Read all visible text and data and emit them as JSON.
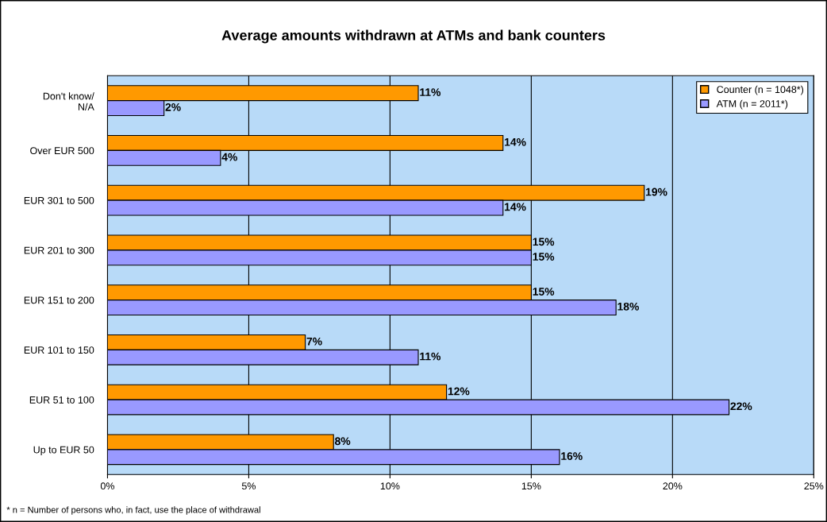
{
  "chart_data": {
    "type": "bar",
    "orientation": "horizontal",
    "title": "Average amounts withdrawn at ATMs and bank counters",
    "categories": [
      "Don't know/\nN/A",
      "Over EUR 500",
      "EUR 301 to 500",
      "EUR 201 to 300",
      "EUR 151 to 200",
      "EUR 101 to 150",
      "EUR 51 to 100",
      "Up to EUR 50"
    ],
    "series": [
      {
        "name": "Counter (n = 1048*)",
        "color": "#ff9900",
        "values": [
          11,
          14,
          19,
          15,
          15,
          7,
          12,
          8
        ],
        "value_labels": [
          "11%",
          "14%",
          "19%",
          "15%",
          "15%",
          "7%",
          "12%",
          "8%"
        ]
      },
      {
        "name": "ATM (n = 2011*)",
        "color": "#9999ff",
        "values": [
          2,
          4,
          14,
          15,
          18,
          11,
          22,
          16
        ],
        "value_labels": [
          "2%",
          "4%",
          "14%",
          "15%",
          "18%",
          "11%",
          "22%",
          "16%"
        ]
      }
    ],
    "xlim": [
      0,
      25
    ],
    "xticks": [
      {
        "value": 0,
        "label": "0%"
      },
      {
        "value": 5,
        "label": "5%"
      },
      {
        "value": 10,
        "label": "10%"
      },
      {
        "value": 15,
        "label": "15%"
      },
      {
        "value": 20,
        "label": "20%"
      },
      {
        "value": 25,
        "label": "25%"
      }
    ],
    "grid": "x",
    "legend": "top right",
    "annotations": [
      "* n = Number of persons who, in fact, use the place of withdrawal"
    ]
  }
}
